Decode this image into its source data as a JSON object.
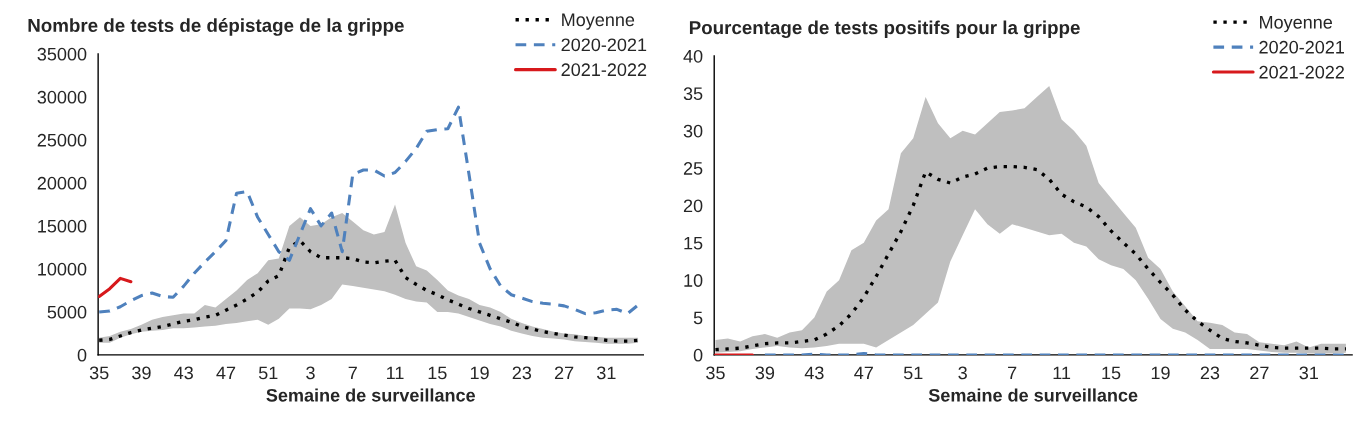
{
  "chart_data": [
    {
      "type": "line",
      "title": "Nombre de tests de dépistage de la grippe",
      "xlabel": "Semaine de surveillance",
      "categories": [
        "35",
        null,
        null,
        null,
        "39",
        null,
        null,
        null,
        "43",
        null,
        null,
        null,
        "47",
        null,
        null,
        null,
        "51",
        null,
        null,
        null,
        "3",
        null,
        null,
        null,
        "7",
        null,
        null,
        null,
        "11",
        null,
        null,
        null,
        "15",
        null,
        null,
        null,
        "19",
        null,
        null,
        null,
        "23",
        null,
        null,
        null,
        "27",
        null,
        null,
        null,
        "31",
        null,
        null,
        null
      ],
      "ylim": [
        0,
        35000
      ],
      "yticks": [
        0,
        5000,
        10000,
        15000,
        20000,
        25000,
        30000,
        35000
      ],
      "grid": false,
      "legend": "top right",
      "series": [
        {
          "name": "Moyenne",
          "color": "#000000",
          "line_style": "dotted",
          "values": [
            1700,
            1800,
            2200,
            2600,
            2900,
            3100,
            3300,
            3600,
            3900,
            4100,
            4400,
            4600,
            5200,
            5800,
            6500,
            7300,
            8600,
            9200,
            12500,
            13300,
            12000,
            11300,
            11300,
            11300,
            11200,
            10800,
            10700,
            10900,
            11000,
            9000,
            8200,
            7500,
            7000,
            6400,
            5900,
            5400,
            5000,
            4600,
            4200,
            3800,
            3300,
            3000,
            2700,
            2500,
            2300,
            2100,
            2000,
            1900,
            1700,
            1600,
            1600,
            1700
          ],
          "lower": [
            1400,
            1400,
            2000,
            2400,
            2700,
            2800,
            2900,
            3100,
            3100,
            3200,
            3300,
            3400,
            3600,
            3700,
            3900,
            4100,
            3500,
            4200,
            5400,
            5400,
            5300,
            5800,
            6500,
            8200,
            8000,
            7800,
            7600,
            7400,
            7000,
            6500,
            6200,
            6100,
            5000,
            5000,
            4800,
            4400,
            4000,
            3600,
            3300,
            2800,
            2500,
            2200,
            2000,
            1900,
            1800,
            1600,
            1500,
            1400,
            1300,
            1300,
            1300,
            1400
          ],
          "upper": [
            2000,
            2200,
            2700,
            3000,
            3500,
            4100,
            4400,
            4600,
            4800,
            4800,
            5800,
            5500,
            6500,
            7500,
            8700,
            9500,
            11000,
            11200,
            15000,
            16000,
            15000,
            15200,
            16000,
            16500,
            15500,
            14500,
            14000,
            14300,
            17500,
            13000,
            10300,
            9800,
            8700,
            7500,
            6900,
            6500,
            5800,
            5500,
            5000,
            4200,
            3700,
            3300,
            3000,
            2700,
            2500,
            2400,
            2200,
            2100,
            2000,
            2000,
            2000,
            2000
          ]
        },
        {
          "name": "2020-2021",
          "color": "#4f81bd",
          "line_style": "dashed",
          "values": [
            5000,
            5100,
            5600,
            6300,
            6900,
            7200,
            6800,
            6700,
            8000,
            9500,
            10800,
            12000,
            13300,
            18800,
            19000,
            16000,
            14000,
            12000,
            11000,
            14000,
            17000,
            15000,
            16500,
            12000,
            21000,
            21500,
            21500,
            20800,
            21200,
            22500,
            24000,
            26000,
            26200,
            26300,
            28800,
            21000,
            13000,
            10000,
            8000,
            7000,
            6600,
            6200,
            6000,
            5900,
            5700,
            5300,
            4800,
            4900,
            5200,
            5300,
            4800,
            5800
          ]
        },
        {
          "name": "2021-2022",
          "color": "#d7191c",
          "line_style": "solid",
          "values": [
            6800,
            7700,
            8900,
            8500,
            null,
            null,
            null,
            null,
            null,
            null,
            null,
            null,
            null,
            null,
            null,
            null,
            null,
            null,
            null,
            null,
            null,
            null,
            null,
            null,
            null,
            null,
            null,
            null,
            null,
            null,
            null,
            null,
            null,
            null,
            null,
            null,
            null,
            null,
            null,
            null,
            null,
            null,
            null,
            null,
            null,
            null,
            null,
            null,
            null,
            null,
            null,
            null
          ]
        }
      ]
    },
    {
      "type": "line",
      "title": "Pourcentage de tests positifs pour la grippe",
      "xlabel": "Semaine de surveillance",
      "categories": [
        "35",
        null,
        null,
        null,
        "39",
        null,
        null,
        null,
        "43",
        null,
        null,
        null,
        "47",
        null,
        null,
        null,
        "51",
        null,
        null,
        null,
        "3",
        null,
        null,
        null,
        "7",
        null,
        null,
        null,
        "11",
        null,
        null,
        null,
        "15",
        null,
        null,
        null,
        "19",
        null,
        null,
        null,
        "23",
        null,
        null,
        null,
        "27",
        null,
        null,
        null,
        "31",
        null,
        null,
        null
      ],
      "ylim": [
        0,
        40
      ],
      "yticks": [
        0,
        5,
        10,
        15,
        20,
        25,
        30,
        35,
        40
      ],
      "grid": false,
      "legend": "top right",
      "series": [
        {
          "name": "Moyenne",
          "color": "#000000",
          "line_style": "dotted",
          "values": [
            0.7,
            0.8,
            0.9,
            1.2,
            1.5,
            1.6,
            1.6,
            1.8,
            2.0,
            2.8,
            3.9,
            5.5,
            7.7,
            10.5,
            13.5,
            16.5,
            20,
            24.5,
            23.5,
            23.0,
            23.8,
            24.2,
            25.0,
            25.2,
            25.2,
            25.1,
            24.8,
            23.5,
            21.5,
            20.5,
            19.8,
            18.5,
            16.6,
            15,
            13.5,
            11.5,
            9.7,
            8,
            6,
            4.5,
            3.3,
            2.2,
            1.8,
            1.6,
            1.3,
            1.0,
            0.9,
            0.9,
            0.9,
            0.9,
            0.8,
            0.8
          ],
          "lower": [
            0.3,
            0.4,
            0.5,
            0.8,
            1.0,
            1.2,
            1.0,
            0.9,
            1.0,
            1.2,
            1.5,
            1.5,
            1.5,
            1.0,
            2,
            3,
            4,
            5.5,
            7,
            12.5,
            16,
            19.5,
            17.5,
            16.2,
            17.5,
            17,
            16.5,
            16,
            16.2,
            15,
            14.5,
            12.8,
            12,
            11.5,
            10,
            7.5,
            4.8,
            3.5,
            3,
            2,
            0.8,
            0.8,
            0.8,
            0.8,
            0.6,
            0.4,
            0.3,
            0.3,
            0.2,
            0.2,
            0.2,
            0.3
          ],
          "upper": [
            2,
            2.2,
            1.8,
            2.5,
            2.8,
            2.3,
            3,
            3.3,
            5,
            8.5,
            10,
            14,
            15,
            18,
            19.5,
            27,
            29,
            34.5,
            31,
            29,
            30,
            29.5,
            31,
            32.5,
            32.7,
            33,
            34.5,
            36,
            31.5,
            30,
            28,
            23,
            21,
            19,
            17,
            13,
            11.5,
            8.5,
            6.5,
            4.5,
            4.3,
            4,
            3,
            2.8,
            1.7,
            1.5,
            1.3,
            1.8,
            1,
            1.5,
            1.5,
            1.5
          ]
        },
        {
          "name": "2020-2021",
          "color": "#4f81bd",
          "line_style": "dashed",
          "values": [
            null,
            null,
            null,
            null,
            0,
            0,
            0,
            0,
            0.1,
            0,
            0,
            0,
            0.2,
            0,
            0,
            0,
            0,
            0,
            0,
            0,
            0,
            0,
            0,
            0,
            0,
            0,
            0,
            0,
            0,
            0,
            0,
            0,
            0,
            0,
            0,
            0,
            0,
            0,
            0,
            0,
            0,
            0,
            0,
            0,
            0,
            0,
            0,
            0,
            0,
            0,
            0,
            0
          ]
        },
        {
          "name": "2021-2022",
          "color": "#d7191c",
          "line_style": "solid",
          "values": [
            0,
            0,
            0,
            0,
            null,
            null,
            null,
            null,
            null,
            null,
            null,
            null,
            null,
            null,
            null,
            null,
            null,
            null,
            null,
            null,
            null,
            null,
            null,
            null,
            null,
            null,
            null,
            null,
            null,
            null,
            null,
            null,
            null,
            null,
            null,
            null,
            null,
            null,
            null,
            null,
            null,
            null,
            null,
            null,
            null,
            null,
            null,
            null,
            null,
            null,
            null,
            null
          ]
        }
      ]
    }
  ]
}
